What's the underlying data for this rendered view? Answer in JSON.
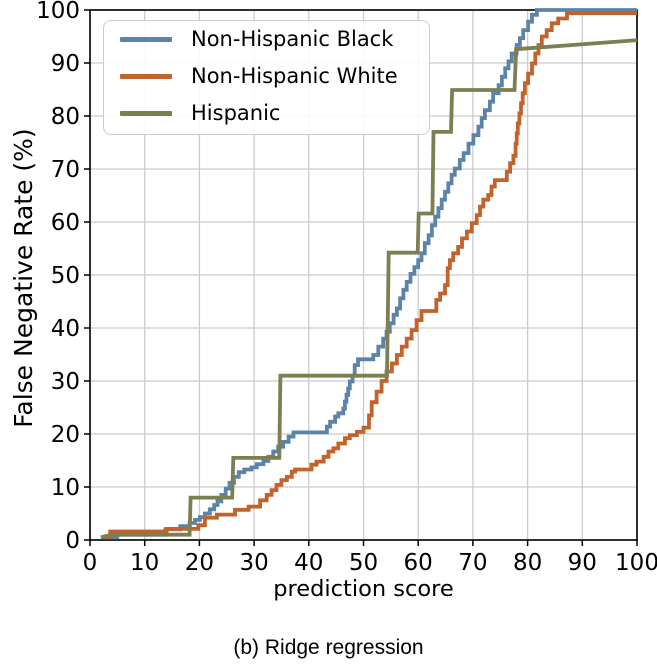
{
  "colors": {
    "background": "#ffffff",
    "grid": "#cccccc",
    "spine": "#000000",
    "tick": "#000000",
    "series_black": "#5C84A9",
    "series_white": "#C3632C",
    "series_hispanic": "#7C7F51"
  },
  "chart_data": {
    "type": "line",
    "title": "",
    "xlabel": "prediction score",
    "ylabel": "False Negative Rate (%)",
    "caption": "(b) Ridge regression",
    "xlim": [
      0,
      100
    ],
    "ylim": [
      0,
      100
    ],
    "xticks": [
      0,
      10,
      20,
      30,
      40,
      50,
      60,
      70,
      80,
      90,
      100
    ],
    "yticks": [
      0,
      10,
      20,
      30,
      40,
      50,
      60,
      70,
      80,
      90,
      100
    ],
    "grid": true,
    "legend_position": "upper-left",
    "series": [
      {
        "name": "Non-Hispanic Black",
        "color": "#5C84A9",
        "interp": "step",
        "points": [
          [
            2,
            0.5
          ],
          [
            5,
            1
          ],
          [
            13.8,
            2
          ],
          [
            16.5,
            2.6
          ],
          [
            18.2,
            3.2
          ],
          [
            19.2,
            3.8
          ],
          [
            20.1,
            4.3
          ],
          [
            21,
            5
          ],
          [
            21.9,
            5.8
          ],
          [
            22.7,
            6.6
          ],
          [
            23.3,
            7.3
          ],
          [
            24,
            8.5
          ],
          [
            24.8,
            9.7
          ],
          [
            25.5,
            10.8
          ],
          [
            26.3,
            11.9
          ],
          [
            27.2,
            12.8
          ],
          [
            28.2,
            13.3
          ],
          [
            29.5,
            13.7
          ],
          [
            30.5,
            14.3
          ],
          [
            31.7,
            14.9
          ],
          [
            32.6,
            15.7
          ],
          [
            33.5,
            16.7
          ],
          [
            34.4,
            17.6
          ],
          [
            35.3,
            18.5
          ],
          [
            36.3,
            19.5
          ],
          [
            37.2,
            20.3
          ],
          [
            43.3,
            21.4
          ],
          [
            43.9,
            22.3
          ],
          [
            44.8,
            23.3
          ],
          [
            45.4,
            23.9
          ],
          [
            46.3,
            24.8
          ],
          [
            46.6,
            26.1
          ],
          [
            46.9,
            27.4
          ],
          [
            47.2,
            28.6
          ],
          [
            47.5,
            29.9
          ],
          [
            48,
            31
          ],
          [
            48.4,
            33
          ],
          [
            49,
            34.1
          ],
          [
            51.8,
            34.9
          ],
          [
            52.7,
            36.5
          ],
          [
            53.6,
            38
          ],
          [
            54.2,
            39.3
          ],
          [
            54.8,
            40.9
          ],
          [
            55.5,
            42.5
          ],
          [
            56.1,
            43.7
          ],
          [
            56.7,
            45.6
          ],
          [
            57.3,
            47.2
          ],
          [
            57.9,
            48.7
          ],
          [
            58.6,
            50.2
          ],
          [
            59.3,
            51.5
          ],
          [
            60,
            52.8
          ],
          [
            60.6,
            54.1
          ],
          [
            61.2,
            56
          ],
          [
            61.9,
            57.5
          ],
          [
            62.5,
            59.4
          ],
          [
            63.1,
            61
          ],
          [
            63.7,
            62.6
          ],
          [
            64.3,
            64.2
          ],
          [
            64.9,
            65.7
          ],
          [
            65.5,
            67.3
          ],
          [
            66.1,
            68.9
          ],
          [
            66.7,
            70.1
          ],
          [
            67.6,
            71.7
          ],
          [
            68.3,
            73
          ],
          [
            69.2,
            74.8
          ],
          [
            70.1,
            76.4
          ],
          [
            71,
            78
          ],
          [
            71.6,
            79.6
          ],
          [
            72.2,
            81.1
          ],
          [
            73.1,
            82.7
          ],
          [
            73.7,
            84.3
          ],
          [
            74.7,
            85.8
          ],
          [
            75.3,
            87.4
          ],
          [
            75.9,
            89
          ],
          [
            76.5,
            90.3
          ],
          [
            77.1,
            91.8
          ],
          [
            78,
            93.4
          ],
          [
            78.6,
            94.7
          ],
          [
            79.2,
            96.2
          ],
          [
            80.1,
            97.8
          ],
          [
            80.8,
            99.1
          ],
          [
            81.7,
            100
          ],
          [
            100,
            100
          ]
        ]
      },
      {
        "name": "Non-Hispanic White",
        "color": "#C3632C",
        "interp": "step",
        "points": [
          [
            3,
            0.5
          ],
          [
            3.7,
            1.6
          ],
          [
            14,
            2.1
          ],
          [
            19.8,
            2.8
          ],
          [
            21,
            4.2
          ],
          [
            23.2,
            4.8
          ],
          [
            26.5,
            5.7
          ],
          [
            29,
            6.3
          ],
          [
            31.1,
            7.5
          ],
          [
            32.3,
            8.5
          ],
          [
            33.2,
            9.4
          ],
          [
            34.1,
            10.4
          ],
          [
            35,
            11.3
          ],
          [
            36,
            11.9
          ],
          [
            36.9,
            12.9
          ],
          [
            37.5,
            13.3
          ],
          [
            40.5,
            14.2
          ],
          [
            41.4,
            14.8
          ],
          [
            42.7,
            15.7
          ],
          [
            43.6,
            16.7
          ],
          [
            44.5,
            17.3
          ],
          [
            45.4,
            18.2
          ],
          [
            46.6,
            19.2
          ],
          [
            47.5,
            19.8
          ],
          [
            48.8,
            20.4
          ],
          [
            50,
            21.2
          ],
          [
            51,
            23.5
          ],
          [
            51.5,
            26
          ],
          [
            52.4,
            28
          ],
          [
            53.3,
            30
          ],
          [
            54.2,
            31.8
          ],
          [
            55.2,
            33.3
          ],
          [
            56.1,
            34.9
          ],
          [
            57,
            36.5
          ],
          [
            57.9,
            38
          ],
          [
            58.8,
            39.6
          ],
          [
            59.7,
            41.5
          ],
          [
            60.6,
            43.2
          ],
          [
            63.3,
            45.3
          ],
          [
            64,
            46.5
          ],
          [
            64.9,
            48.1
          ],
          [
            65.4,
            51.3
          ],
          [
            65.8,
            52.8
          ],
          [
            66.4,
            54.1
          ],
          [
            67.3,
            55.3
          ],
          [
            68,
            56.9
          ],
          [
            68.9,
            58.2
          ],
          [
            69.8,
            59.8
          ],
          [
            70.7,
            61.3
          ],
          [
            71.3,
            62.9
          ],
          [
            71.9,
            64.2
          ],
          [
            72.8,
            65.1
          ],
          [
            73.4,
            66.7
          ],
          [
            74,
            67.9
          ],
          [
            76.2,
            69.5
          ],
          [
            76.8,
            71.1
          ],
          [
            77.4,
            72.5
          ],
          [
            77.8,
            74.8
          ],
          [
            78,
            76.7
          ],
          [
            78.2,
            78.6
          ],
          [
            78.5,
            80.5
          ],
          [
            78.8,
            82.4
          ],
          [
            79.1,
            84.3
          ],
          [
            79.5,
            86.2
          ],
          [
            80.1,
            88
          ],
          [
            80.8,
            89.9
          ],
          [
            81.4,
            91.8
          ],
          [
            82,
            93.4
          ],
          [
            82.6,
            95
          ],
          [
            83.5,
            96.2
          ],
          [
            84.4,
            97.5
          ],
          [
            85.6,
            98.4
          ],
          [
            87.2,
            99.4
          ],
          [
            100,
            99.4
          ]
        ]
      },
      {
        "name": "Hispanic",
        "color": "#7C7F51",
        "interp": "linear",
        "points": [
          [
            2,
            0.5
          ],
          [
            4,
            1
          ],
          [
            18.2,
            1
          ],
          [
            18.4,
            8
          ],
          [
            26,
            8
          ],
          [
            26.2,
            15.5
          ],
          [
            34.6,
            15.5
          ],
          [
            34.8,
            31
          ],
          [
            54.3,
            31
          ],
          [
            54.6,
            54.2
          ],
          [
            59.9,
            54.2
          ],
          [
            60.1,
            61.6
          ],
          [
            62.6,
            61.6
          ],
          [
            62.8,
            77
          ],
          [
            66,
            77
          ],
          [
            66.2,
            84.9
          ],
          [
            77.6,
            84.9
          ],
          [
            77.9,
            92.6
          ],
          [
            100,
            94.3
          ]
        ]
      }
    ]
  }
}
